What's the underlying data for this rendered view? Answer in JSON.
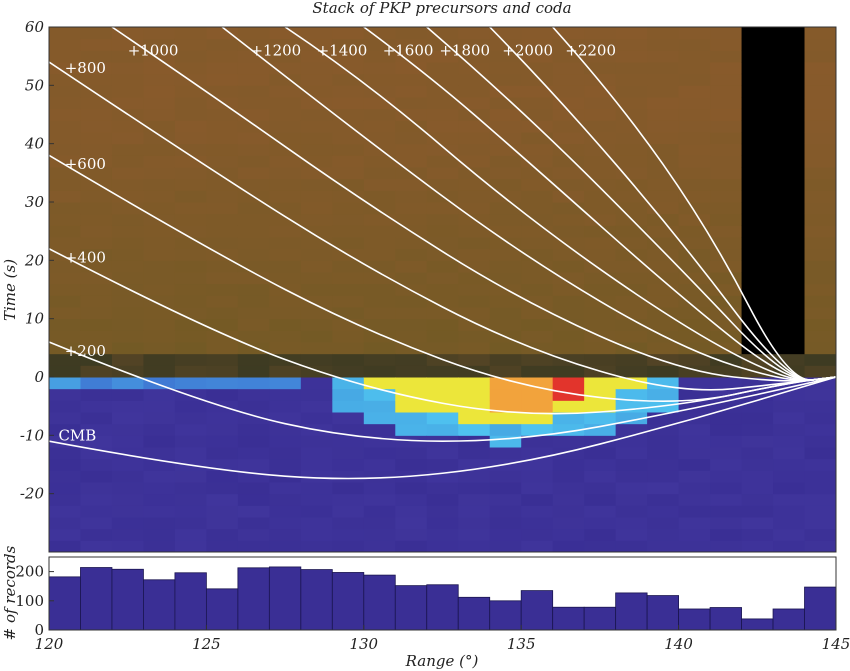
{
  "chart_data": [
    {
      "type": "heatmap",
      "title": "Stack of PKP precursors and coda",
      "xlabel": "",
      "ylabel": "Time (s)",
      "xlim": [
        120,
        145
      ],
      "ylim": [
        -30,
        60
      ],
      "y_ticks": [
        "60",
        "50",
        "40",
        "30",
        "20",
        "10",
        "0",
        "-10",
        "-20"
      ],
      "y_tick_values": [
        60,
        50,
        40,
        30,
        20,
        10,
        0,
        -10,
        -20
      ],
      "colors": {
        "background_low": "#3a2f95",
        "background_high": "#8a5a2c",
        "band_dark": "#2f3520",
        "anomaly_cyan": "#4fc3f0",
        "anomaly_yellow": "#ece63a",
        "anomaly_orange": "#f2a33c",
        "anomaly_red": "#e2342c",
        "curve": "#ffffff"
      },
      "curve_labels": [
        "+200",
        "+400",
        "+600",
        "+800",
        "+1000",
        "+1200",
        "+1400",
        "+1600",
        "+1800",
        "+2000",
        "+2200",
        "CMB"
      ],
      "curves": [
        {
          "label": "+200",
          "x": [
            120,
            125,
            130,
            135,
            140,
            145
          ],
          "y": [
            6,
            -5,
            -11,
            -11,
            -6,
            0
          ]
        },
        {
          "label": "+400",
          "x": [
            120,
            125,
            130,
            135,
            140,
            143.5,
            145
          ],
          "y": [
            22,
            8,
            -2,
            -7,
            -5,
            -1,
            0
          ]
        },
        {
          "label": "+600",
          "x": [
            120,
            125,
            130,
            135,
            140,
            143.5,
            145
          ],
          "y": [
            38,
            22,
            8,
            -2,
            -5,
            -1,
            0
          ]
        },
        {
          "label": "+800",
          "x": [
            120,
            125,
            130,
            135,
            140,
            143.5,
            145
          ],
          "y": [
            54,
            36,
            19,
            5,
            -3,
            -1,
            0
          ]
        },
        {
          "label": "+1000",
          "x": [
            122,
            125,
            130,
            135,
            140,
            143.5,
            145
          ],
          "y": [
            60,
            49,
            30,
            13,
            1,
            -1,
            0
          ]
        },
        {
          "label": "+1200",
          "x": [
            125.5,
            130,
            135,
            140,
            143.5,
            145
          ],
          "y": [
            60,
            41,
            21,
            5,
            -1,
            0
          ]
        },
        {
          "label": "+1400",
          "x": [
            127.5,
            130,
            135,
            140,
            143.5,
            145
          ],
          "y": [
            60,
            51,
            28,
            9,
            -1,
            0
          ]
        },
        {
          "label": "+1600",
          "x": [
            130,
            132,
            135,
            140,
            143.5,
            145
          ],
          "y": [
            60,
            52,
            38,
            14,
            -1,
            0
          ]
        },
        {
          "label": "+1800",
          "x": [
            132,
            135,
            140,
            143.5,
            145
          ],
          "y": [
            60,
            46,
            19,
            -1,
            0
          ]
        },
        {
          "label": "+2000",
          "x": [
            134,
            136,
            140,
            143.5,
            145
          ],
          "y": [
            60,
            49,
            24,
            -1,
            0
          ]
        },
        {
          "label": "+2200",
          "x": [
            136,
            138,
            141,
            143.5,
            145
          ],
          "y": [
            60,
            48,
            25,
            -1,
            0
          ]
        },
        {
          "label": "CMB",
          "x": [
            120,
            125,
            130,
            135,
            140,
            145
          ],
          "y": [
            -11,
            -16,
            -18,
            -15,
            -8,
            0
          ]
        }
      ]
    },
    {
      "type": "bar",
      "title": "",
      "xlabel": "Range (°)",
      "ylabel": "# of records",
      "xlim": [
        120,
        145
      ],
      "ylim": [
        0,
        250
      ],
      "x_ticks": [
        "120",
        "125",
        "130",
        "135",
        "140",
        "145"
      ],
      "x_tick_values": [
        120,
        125,
        130,
        135,
        140,
        145
      ],
      "y_ticks": [
        "200",
        "100",
        "0"
      ],
      "y_tick_values": [
        200,
        100,
        0
      ],
      "bar_color": "#3a2f95",
      "bin_starts": [
        120,
        121,
        122,
        123,
        124,
        125,
        126,
        127,
        128,
        129,
        130,
        131,
        132,
        133,
        134,
        135,
        136,
        137,
        138,
        139,
        140,
        141,
        142,
        143,
        144
      ],
      "values": [
        182,
        214,
        208,
        172,
        196,
        141,
        213,
        216,
        207,
        197,
        188,
        152,
        155,
        112,
        100,
        135,
        78,
        78,
        127,
        118,
        72,
        77,
        38,
        72,
        147
      ]
    }
  ]
}
